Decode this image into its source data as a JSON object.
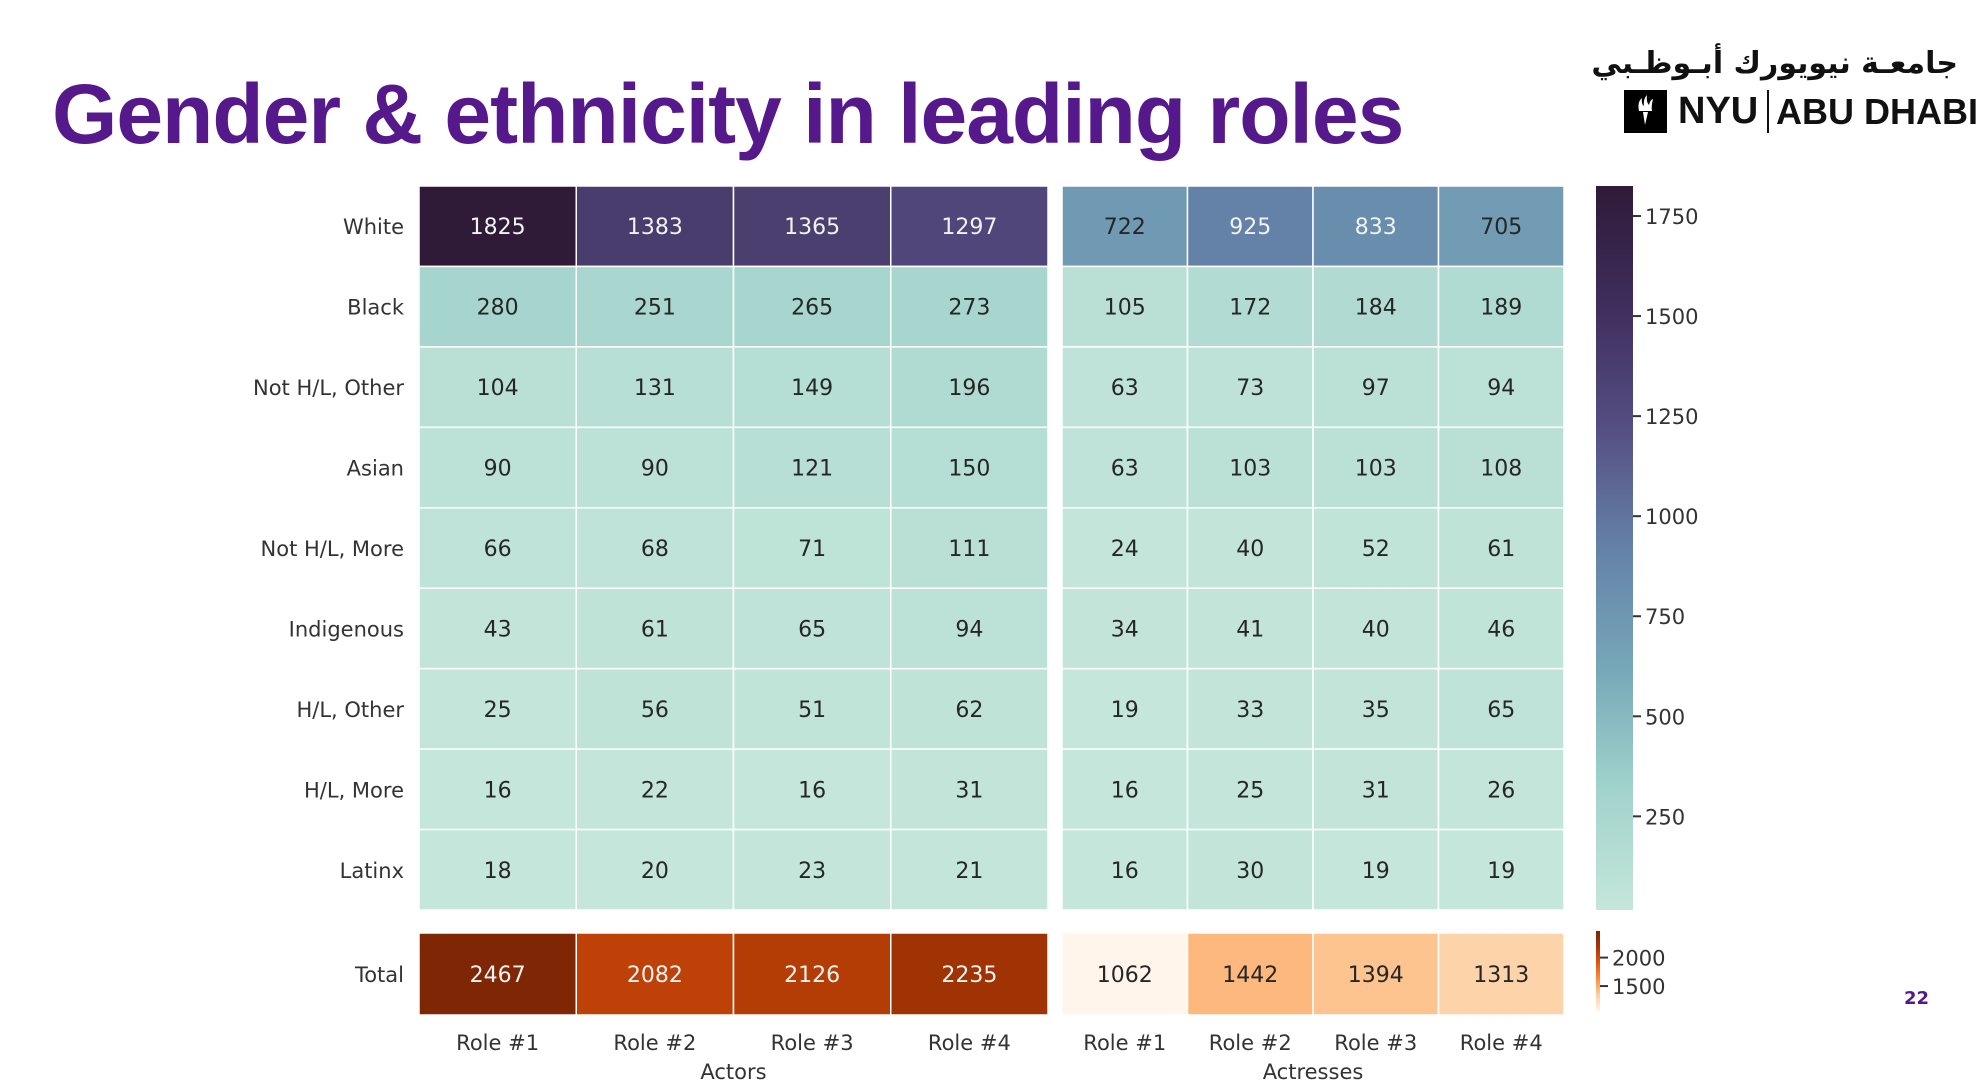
{
  "slide": {
    "title": "Gender & ethnicity in leading roles",
    "page_number": "22",
    "title_color": "#55198b"
  },
  "logo": {
    "arabic_text": "جامعـة نيويورك أبـوظـبي",
    "nyu_text": "NYU",
    "abu_dhabi_text": "ABU DHABI",
    "icon": "torch-icon"
  },
  "chart_data": {
    "type": "heatmap",
    "title": "",
    "rows": [
      "White",
      "Black",
      "Not H/L, Other",
      "Asian",
      "Not H/L, More",
      "Indigenous",
      "H/L, Other",
      "H/L, More",
      "Latinx"
    ],
    "column_labels": [
      "Role #1",
      "Role #2",
      "Role #3",
      "Role #4"
    ],
    "groups": [
      {
        "name": "Actors",
        "values": [
          [
            1825,
            1383,
            1365,
            1297
          ],
          [
            280,
            251,
            265,
            273
          ],
          [
            104,
            131,
            149,
            196
          ],
          [
            90,
            90,
            121,
            150
          ],
          [
            66,
            68,
            71,
            111
          ],
          [
            43,
            61,
            65,
            94
          ],
          [
            25,
            56,
            51,
            62
          ],
          [
            16,
            22,
            16,
            31
          ],
          [
            18,
            20,
            23,
            21
          ]
        ],
        "total": [
          2467,
          2082,
          2126,
          2235
        ]
      },
      {
        "name": "Actresses",
        "values": [
          [
            722,
            925,
            833,
            705
          ],
          [
            105,
            172,
            184,
            189
          ],
          [
            63,
            73,
            97,
            94
          ],
          [
            63,
            103,
            103,
            108
          ],
          [
            24,
            40,
            52,
            61
          ],
          [
            34,
            41,
            40,
            46
          ],
          [
            19,
            33,
            35,
            65
          ],
          [
            16,
            25,
            31,
            26
          ],
          [
            16,
            30,
            19,
            19
          ]
        ],
        "total": [
          1062,
          1442,
          1394,
          1313
        ]
      }
    ],
    "total_row_label": "Total",
    "main_colorbar": {
      "range": [
        16,
        1825
      ],
      "ticks": [
        250,
        500,
        750,
        1000,
        1250,
        1500,
        1750
      ],
      "colormap": [
        "#c5e6da",
        "#a1d3cc",
        "#76a7b8",
        "#6482a8",
        "#554e82",
        "#3f2e5d",
        "#2f1a38"
      ]
    },
    "total_colorbar": {
      "range": [
        1062,
        2467
      ],
      "ticks": [
        1500,
        2000
      ],
      "colormap": [
        "#fff5eb",
        "#fdd0a2",
        "#fd8d3c",
        "#e6550d",
        "#a63603",
        "#7f2704"
      ]
    }
  }
}
